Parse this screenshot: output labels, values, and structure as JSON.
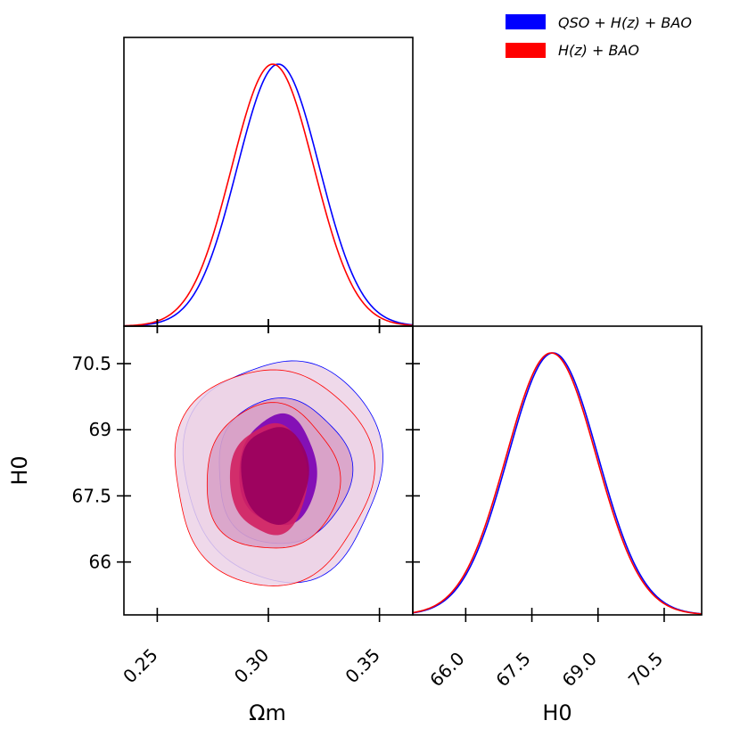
{
  "chart_data": {
    "type": "corner",
    "legend": {
      "position": "top-right",
      "entries": [
        {
          "label": "QSO + H(z) + BAO",
          "color": "#0000ff"
        },
        {
          "label": "H(z) + BAO",
          "color": "#ff0000"
        }
      ]
    },
    "params": {
      "om": {
        "label": "Ωm",
        "range": [
          0.235,
          0.365
        ],
        "ticks": [
          0.25,
          0.3,
          0.35
        ],
        "tick_labels": [
          "0.25",
          "0.30",
          "0.35"
        ]
      },
      "h0": {
        "label": "H0",
        "range": [
          64.8,
          71.35
        ],
        "ticks": [
          66.0,
          67.5,
          69.0,
          70.5
        ],
        "tick_labels": [
          "66",
          "67.5",
          "69",
          "70.5"
        ],
        "tick_labels_bottom": [
          "66.0",
          "67.5",
          "69.0",
          "70.5"
        ]
      }
    },
    "marginal_om": {
      "series": [
        {
          "name": "QSO + H(z) + BAO",
          "color": "#0000ff",
          "mean": 0.3045,
          "sigma": 0.0185
        },
        {
          "name": "H(z) + BAO",
          "color": "#ff0000",
          "mean": 0.302,
          "sigma": 0.0185
        }
      ]
    },
    "marginal_h0": {
      "series": [
        {
          "name": "QSO + H(z) + BAO",
          "color": "#0000ff",
          "mean": 67.98,
          "sigma": 1.02
        },
        {
          "name": "H(z) + BAO",
          "color": "#ff0000",
          "mean": 67.94,
          "sigma": 1.02
        }
      ]
    },
    "contours_2d": [
      {
        "name": "QSO + H(z) + BAO 2σ",
        "color": "#0000ff",
        "fill": "#ecd2e6",
        "center": [
          0.3065,
          68.1
        ],
        "sig": [
          0.0445,
          2.5
        ],
        "rot": 0.12
      },
      {
        "name": "H(z) + BAO 2σ",
        "color": "#ff0000",
        "fill": "#ecd2e6",
        "center": [
          0.3015,
          67.95
        ],
        "sig": [
          0.0445,
          2.45
        ],
        "rot": 0.12
      },
      {
        "name": "QSO + H(z) + BAO 1σ",
        "color": "#0000ff",
        "fill": "#d8a2c8",
        "center": [
          0.3065,
          68.05
        ],
        "sig": [
          0.03,
          1.65
        ],
        "rot": 0.12
      },
      {
        "name": "H(z) + BAO 1σ",
        "color": "#ff0000",
        "fill": "#d8a2c8",
        "center": [
          0.3015,
          67.9
        ],
        "sig": [
          0.03,
          1.65
        ],
        "rot": 0.12
      },
      {
        "name": "QSO + H(z) + BAO core",
        "color": "#6a00b4",
        "fill": "#7a00b4",
        "center": [
          0.3045,
          68.07
        ],
        "sig": [
          0.0175,
          1.25
        ],
        "rot": 0.05
      },
      {
        "name": "H(z) + BAO core",
        "color": "#d02060",
        "fill": "#d02060",
        "center": [
          0.3005,
          67.88
        ],
        "sig": [
          0.0175,
          1.25
        ],
        "rot": 0.05
      },
      {
        "name": "overlap core",
        "color": "#99005e",
        "fill": "#99005e",
        "center": [
          0.303,
          67.98
        ],
        "sig": [
          0.0152,
          1.1
        ],
        "rot": 0.05
      }
    ]
  }
}
